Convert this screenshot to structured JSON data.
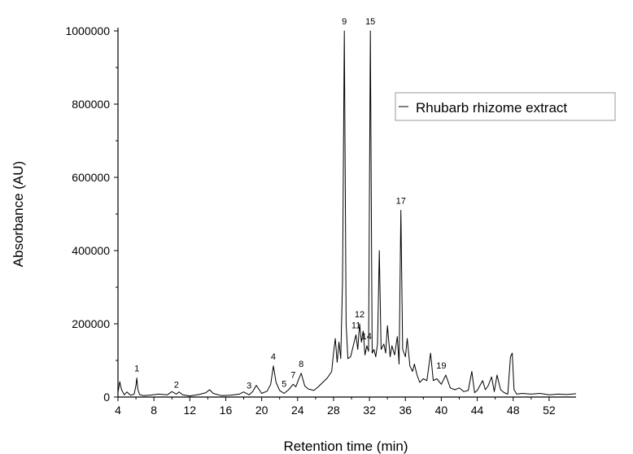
{
  "chart_data": {
    "type": "line",
    "title": "",
    "xlabel": "Retention time (min)",
    "ylabel": "Absorbance  (AU)",
    "xlim": [
      4,
      55
    ],
    "ylim": [
      0,
      1000000
    ],
    "x_ticks": [
      4,
      8,
      12,
      16,
      20,
      24,
      28,
      32,
      36,
      40,
      44,
      48,
      52
    ],
    "y_ticks": [
      0,
      200000,
      400000,
      600000,
      800000,
      1000000
    ],
    "grid": false,
    "legend_position": "top-right",
    "series": [
      {
        "name": "Rhubarb rhizome extract",
        "color": "#000000",
        "x": [
          4.0,
          4.2,
          4.4,
          4.7,
          5.0,
          5.4,
          5.8,
          6.0,
          6.1,
          6.2,
          6.4,
          6.8,
          7.5,
          8.5,
          9.5,
          10.0,
          10.5,
          10.8,
          11.2,
          12.0,
          13.0,
          13.8,
          14.2,
          14.6,
          15.5,
          16.5,
          17.5,
          18.0,
          18.6,
          19.0,
          19.4,
          20.0,
          20.6,
          21.0,
          21.3,
          21.6,
          22.0,
          22.5,
          23.0,
          23.5,
          23.8,
          24.1,
          24.4,
          24.8,
          25.2,
          25.8,
          26.3,
          26.8,
          27.3,
          27.8,
          28.0,
          28.2,
          28.4,
          28.6,
          28.8,
          29.0,
          29.2,
          29.4,
          29.6,
          29.9,
          30.2,
          30.5,
          30.7,
          30.9,
          31.1,
          31.3,
          31.5,
          31.7,
          31.9,
          32.1,
          32.3,
          32.5,
          32.7,
          32.9,
          33.1,
          33.3,
          33.6,
          33.8,
          34.0,
          34.3,
          34.5,
          34.8,
          35.1,
          35.3,
          35.5,
          35.7,
          36.0,
          36.2,
          36.5,
          36.8,
          37.0,
          37.3,
          37.6,
          38.0,
          38.4,
          38.8,
          39.1,
          39.5,
          40.0,
          40.5,
          41.0,
          41.5,
          42.0,
          42.5,
          43.0,
          43.4,
          43.7,
          44.0,
          44.6,
          44.9,
          45.2,
          45.6,
          45.9,
          46.2,
          46.6,
          47.0,
          47.4,
          47.7,
          47.9,
          48.1,
          48.4,
          49.0,
          50.0,
          51.0,
          52.0,
          53.0,
          54.0,
          55.0
        ],
        "values": [
          12000,
          42000,
          20000,
          6000,
          14000,
          5000,
          8000,
          32000,
          52000,
          22000,
          7000,
          4000,
          5000,
          8000,
          6000,
          15000,
          8000,
          14000,
          6000,
          3000,
          7000,
          12000,
          20000,
          10000,
          4000,
          5000,
          8000,
          14000,
          6000,
          15000,
          32000,
          10000,
          16000,
          35000,
          85000,
          40000,
          18000,
          10000,
          20000,
          35000,
          28000,
          48000,
          65000,
          30000,
          22000,
          18000,
          28000,
          40000,
          52000,
          70000,
          120000,
          160000,
          95000,
          150000,
          105000,
          315000,
          1000000,
          200000,
          105000,
          110000,
          140000,
          170000,
          130000,
          200000,
          150000,
          180000,
          115000,
          140000,
          125000,
          1000000,
          120000,
          130000,
          110000,
          145000,
          400000,
          130000,
          145000,
          120000,
          195000,
          110000,
          140000,
          115000,
          165000,
          90000,
          510000,
          130000,
          110000,
          160000,
          85000,
          70000,
          90000,
          60000,
          40000,
          50000,
          45000,
          120000,
          45000,
          50000,
          35000,
          60000,
          25000,
          20000,
          25000,
          15000,
          18000,
          70000,
          12000,
          18000,
          45000,
          20000,
          30000,
          55000,
          15000,
          60000,
          20000,
          12000,
          8000,
          110000,
          120000,
          20000,
          8000,
          10000,
          8000,
          10000,
          6000,
          8000,
          7000,
          9000
        ]
      }
    ],
    "peak_labels": [
      {
        "label": "1",
        "x": 6.1,
        "value": 52000
      },
      {
        "label": "2",
        "x": 10.5,
        "value": 8000
      },
      {
        "label": "3",
        "x": 18.6,
        "value": 6000
      },
      {
        "label": "4",
        "x": 21.3,
        "value": 85000
      },
      {
        "label": "5",
        "x": 22.5,
        "value": 10000
      },
      {
        "label": "7",
        "x": 23.5,
        "value": 35000
      },
      {
        "label": "8",
        "x": 24.4,
        "value": 65000
      },
      {
        "label": "9",
        "x": 29.2,
        "value": 1000000
      },
      {
        "label": "11",
        "x": 30.5,
        "value": 170000
      },
      {
        "label": "12",
        "x": 30.9,
        "value": 200000
      },
      {
        "label": "14",
        "x": 31.7,
        "value": 140000
      },
      {
        "label": "15",
        "x": 32.1,
        "value": 1000000
      },
      {
        "label": "17",
        "x": 35.5,
        "value": 510000
      },
      {
        "label": "19",
        "x": 40.0,
        "value": 60000
      }
    ]
  }
}
